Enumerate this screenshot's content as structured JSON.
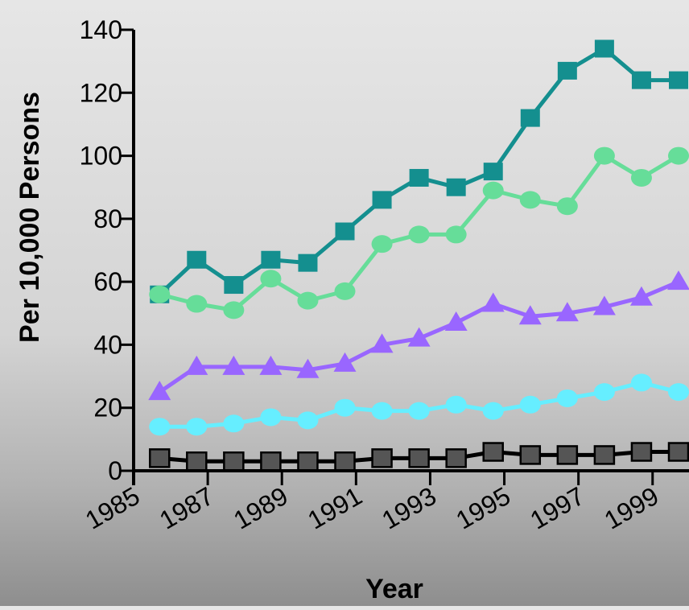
{
  "chart_data": {
    "type": "line",
    "xlabel": "Year",
    "ylabel": "Per 10,000 Persons",
    "ylim": [
      0,
      140
    ],
    "xlim": [
      1985,
      1999.7
    ],
    "yticks": [
      0,
      20,
      40,
      60,
      80,
      100,
      120,
      140
    ],
    "xticks": [
      1985,
      1987,
      1989,
      1991,
      1993,
      1995,
      1997,
      1999
    ],
    "grid": false,
    "x": [
      1985.7,
      1986.7,
      1987.7,
      1988.7,
      1989.7,
      1990.7,
      1991.7,
      1992.7,
      1993.7,
      1994.7,
      1995.7,
      1996.7,
      1997.7,
      1998.7,
      1999.7
    ],
    "series": [
      {
        "color": "#148f8f",
        "marker": "square",
        "values": [
          56,
          67,
          59,
          67,
          66,
          76,
          86,
          93,
          90,
          95,
          112,
          127,
          134,
          124,
          124
        ]
      },
      {
        "color": "#66dd99",
        "marker": "circle",
        "values": [
          56,
          53,
          51,
          61,
          54,
          57,
          72,
          75,
          75,
          89,
          86,
          84,
          100,
          93,
          100
        ]
      },
      {
        "color": "#9966ff",
        "marker": "triangle",
        "values": [
          25,
          33,
          33,
          33,
          32,
          34,
          40,
          42,
          47,
          53,
          49,
          50,
          52,
          55,
          60
        ]
      },
      {
        "color": "#66eeff",
        "marker": "circle",
        "values": [
          14,
          14,
          15,
          17,
          16,
          20,
          19,
          19,
          21,
          19,
          21,
          23,
          25,
          28,
          25
        ]
      },
      {
        "color": "#555555",
        "stroke": "#000000",
        "marker": "square",
        "values": [
          4,
          3,
          3,
          3,
          3,
          3,
          4,
          4,
          4,
          6,
          5,
          5,
          5,
          6,
          6
        ]
      }
    ]
  }
}
